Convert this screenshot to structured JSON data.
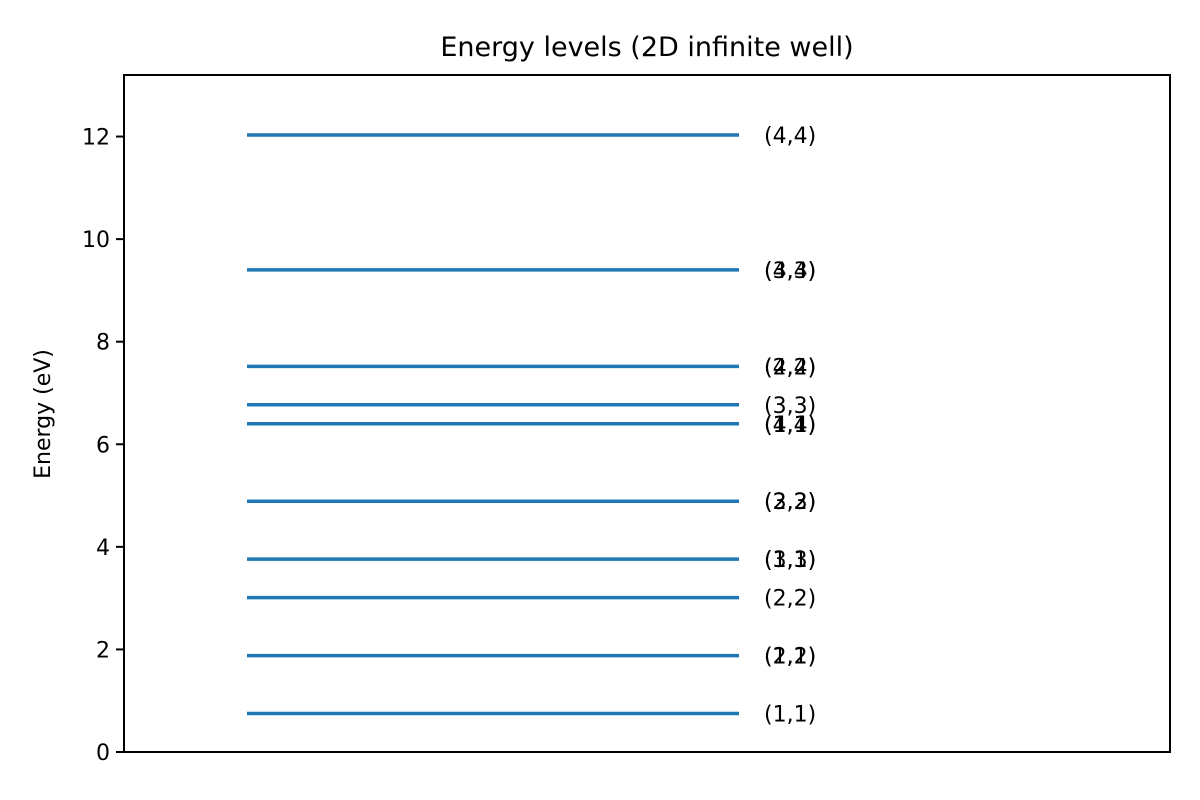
{
  "chart_data": {
    "type": "line",
    "title": "Energy levels (2D infinite well)",
    "xlabel": "",
    "ylabel": "Energy (eV)",
    "ylim": [
      0,
      13.2
    ],
    "yticks": [
      "0",
      "2",
      "4",
      "6",
      "8",
      "10",
      "12"
    ],
    "grid": false,
    "line_color": "#1f77b4",
    "levels": [
      {
        "energy": 0.75,
        "labels": [
          "(1,1)"
        ]
      },
      {
        "energy": 1.88,
        "labels": [
          "(1,2)",
          "(2,1)"
        ]
      },
      {
        "energy": 3.01,
        "labels": [
          "(2,2)"
        ]
      },
      {
        "energy": 3.76,
        "labels": [
          "(1,3)",
          "(3,1)"
        ]
      },
      {
        "energy": 4.89,
        "labels": [
          "(2,3)",
          "(3,2)"
        ]
      },
      {
        "energy": 6.4,
        "labels": [
          "(1,4)",
          "(4,1)"
        ]
      },
      {
        "energy": 6.77,
        "labels": [
          "(3,3)"
        ]
      },
      {
        "energy": 7.52,
        "labels": [
          "(2,4)",
          "(4,2)"
        ]
      },
      {
        "energy": 9.4,
        "labels": [
          "(3,4)",
          "(4,3)"
        ]
      },
      {
        "energy": 12.03,
        "labels": [
          "(4,4)"
        ]
      }
    ]
  }
}
